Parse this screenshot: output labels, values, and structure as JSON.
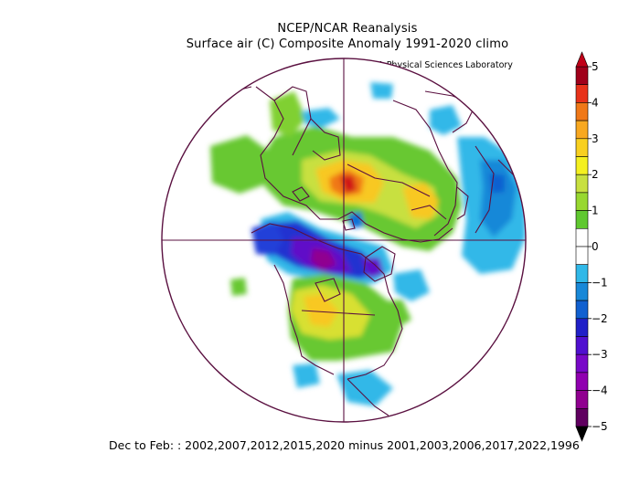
{
  "header": {
    "title": "NCEP/NCAR Reanalysis",
    "subtitle": "Surface air (C) Composite Anomaly 1991-2020 climo",
    "credit": "NOAA Physical Sciences Laboratory"
  },
  "footer": {
    "text": "Dec to Feb: : 2002,2007,2012,2015,2020 minus 2001,2003,2006,2017,2022,1996"
  },
  "colorbar": {
    "labels": [
      "5",
      "4",
      "3",
      "2",
      "1",
      "0",
      "-1",
      "-2",
      "-3",
      "-4",
      "-5"
    ],
    "colors": [
      "#a0001a",
      "#e8321a",
      "#f07818",
      "#f8a820",
      "#f8d020",
      "#f4f020",
      "#c8e040",
      "#98d830",
      "#60c830",
      "#ffffff",
      "#ffffff",
      "#30b8e8",
      "#1888d8",
      "#1060d0",
      "#2020c8",
      "#5010d0",
      "#7808c8",
      "#9000b0",
      "#900090",
      "#600060"
    ],
    "top_arrow_color": "#c00018",
    "bottom_arrow_color": "#000000"
  },
  "colors": {
    "coastline": "#5a1040",
    "ring": "#5a1040"
  }
}
